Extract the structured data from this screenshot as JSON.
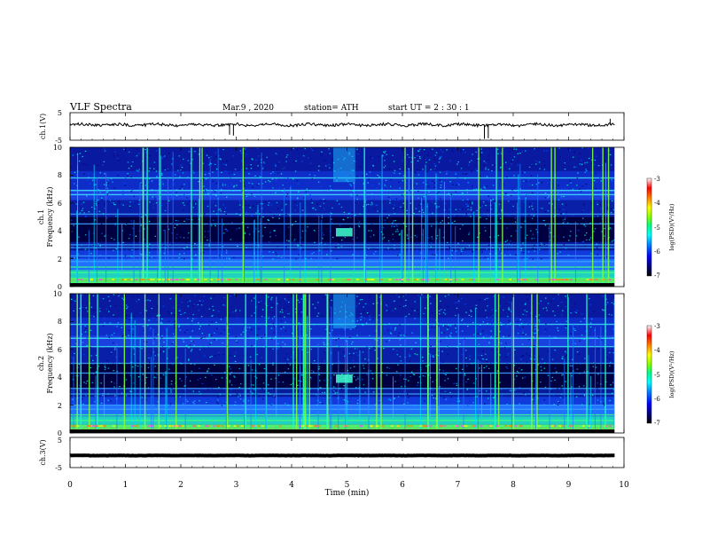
{
  "header": {
    "title": "VLF  Spectra",
    "date": "Mar.9  , 2020",
    "station": "station= ATH",
    "start_ut": "start  UT  =   2  : 30 : 1"
  },
  "chart_data": [
    {
      "type": "line",
      "ylabel": "ch.1(V)",
      "ylim": [
        -5,
        5
      ],
      "yticks": [
        "5",
        "-5"
      ],
      "baseline": 0.6,
      "noise_amplitude": 0.5,
      "spikes": [
        {
          "x": 2.88,
          "y": -3.0
        },
        {
          "x": 2.95,
          "y": -3.3
        },
        {
          "x": 7.48,
          "y": -4.5
        },
        {
          "x": 7.55,
          "y": -4.3
        },
        {
          "x": 9.75,
          "y": 2.8
        }
      ]
    },
    {
      "type": "heatmap",
      "ylabel_line1": "ch.1",
      "ylabel_line2": "Frequency  (kHz)",
      "ylim": [
        0,
        10
      ],
      "yticks": [
        "0",
        "2",
        "4",
        "6",
        "8",
        "10"
      ],
      "colorbar": {
        "label": "log(PSD)(V²/Hz)",
        "range": [
          -7,
          -3
        ],
        "ticks": [
          "-3",
          "-4",
          "-5",
          "-6",
          "-7"
        ]
      },
      "bands_khz": [
        0.3,
        0.6,
        1.0,
        1.4,
        1.8,
        2.2,
        2.8,
        3.0,
        4.5,
        5.2,
        6.6,
        6.9,
        7.8
      ],
      "sferic_density": 0.55,
      "emission": {
        "x_start": 4.8,
        "x_end": 5.1,
        "freq_khz": 3.9
      }
    },
    {
      "type": "heatmap",
      "ylabel_line1": "ch.2",
      "ylabel_line2": "Frequency  (kHz)",
      "ylim": [
        0,
        10
      ],
      "yticks": [
        "0",
        "2",
        "4",
        "6",
        "8",
        "10"
      ],
      "colorbar": {
        "label": "log(PSD)(V²/Hz)",
        "range": [
          -7,
          -3
        ],
        "ticks": [
          "-3",
          "-4",
          "-5",
          "-6",
          "-7"
        ]
      },
      "bands_khz": [
        0.5,
        0.9,
        1.3,
        1.7,
        2.0,
        2.8,
        3.2,
        4.3,
        5.0,
        6.2,
        6.8,
        7.8
      ],
      "sferic_density": 0.6,
      "emission": {
        "x_start": 4.8,
        "x_end": 5.1,
        "freq_khz": 3.9
      }
    },
    {
      "type": "line",
      "ylabel": "ch.3(V)",
      "ylim": [
        -5,
        5
      ],
      "yticks": [
        "5",
        "-5"
      ],
      "baseline": -1.0,
      "noise_amplitude": 0.05
    }
  ],
  "x_axis": {
    "label": "Time  (min)",
    "range": [
      0,
      10
    ],
    "ticks": [
      "0",
      "1",
      "2",
      "3",
      "4",
      "5",
      "6",
      "7",
      "8",
      "9",
      "10"
    ],
    "data_end": 9.83
  },
  "colors": {
    "psd_scale": [
      "#000000",
      "#000080",
      "#0000ff",
      "#0080ff",
      "#00ffff",
      "#00ff80",
      "#80ff00",
      "#ffff00",
      "#ff8000",
      "#ff0000",
      "#ffffff"
    ]
  }
}
